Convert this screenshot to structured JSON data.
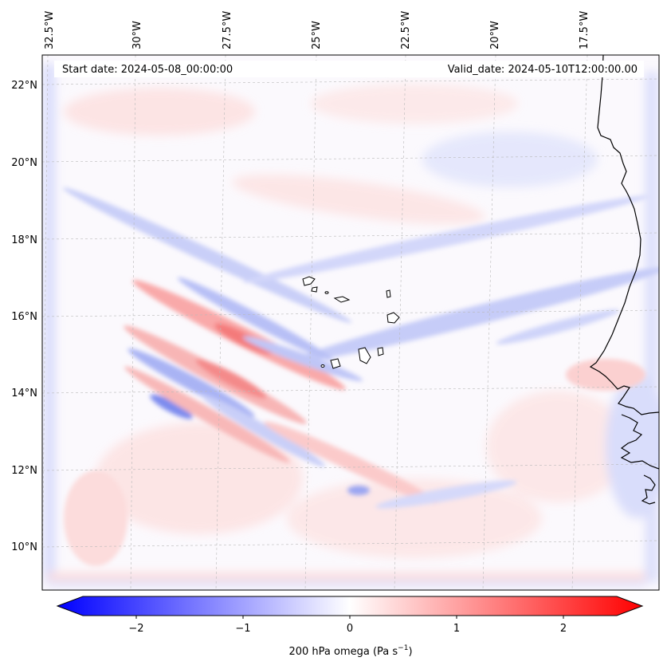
{
  "map": {
    "start_date_label": "Start date: 2024-05-08_00:00:00",
    "valid_date_label": "Valid_date: 2024-05-10T12:00:00.00",
    "longitude_labels": [
      "32.5°W",
      "30°W",
      "27.5°W",
      "25°W",
      "22.5°W",
      "20°W",
      "17.5°W"
    ],
    "latitude_labels": [
      "22°N",
      "20°N",
      "18°N",
      "16°N",
      "14°N",
      "12°N",
      "10°N"
    ],
    "extent": {
      "lon_min": -32.5,
      "lon_max": -15.0,
      "lat_min": 8.9,
      "lat_max": 22.7
    }
  },
  "colorbar": {
    "title_prefix": "200 hPa omega (Pa s",
    "title_exp": "−1",
    "title_suffix": ")",
    "tick_labels": [
      "−2",
      "−1",
      "0",
      "1",
      "2"
    ],
    "range": [
      -2.6,
      2.6
    ],
    "neg_color": "#0000ff",
    "mid_color": "#ffffff",
    "pos_color": "#ff0000"
  }
}
